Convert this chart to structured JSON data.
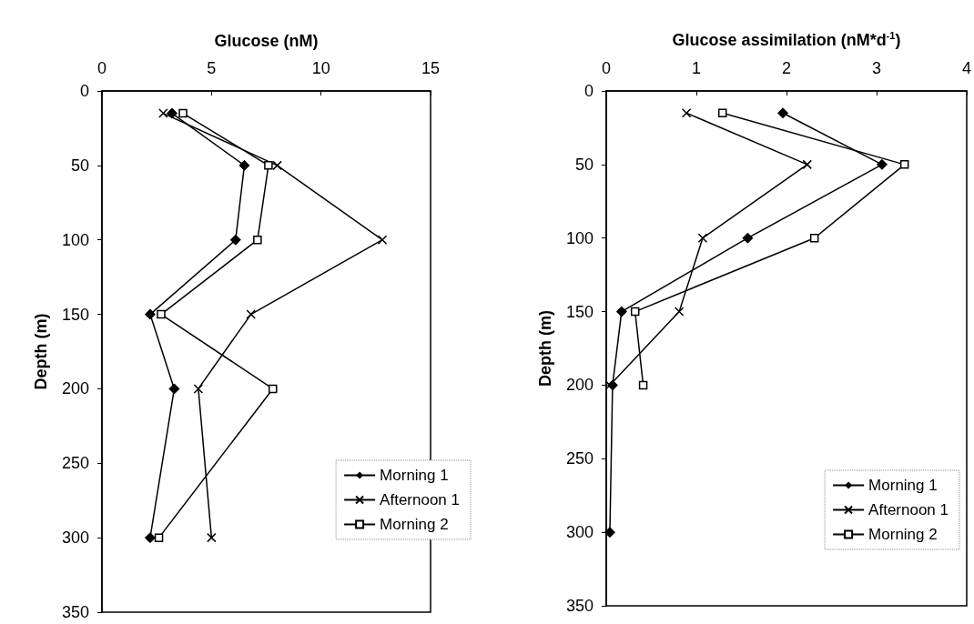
{
  "chart_data": [
    {
      "type": "line",
      "xlabel": "Glucose (nM)",
      "ylabel": "Depth (m)",
      "xlim": [
        0,
        15
      ],
      "xticks": [
        0,
        5,
        10,
        15
      ],
      "ylim": [
        350,
        0
      ],
      "yticks": [
        0,
        50,
        100,
        150,
        200,
        250,
        300,
        350
      ],
      "grid": false,
      "legend": "bottom right",
      "series": [
        {
          "name": "Morning 1",
          "color": "#000000",
          "marker": "diamond",
          "x": [
            3.2,
            6.5,
            6.1,
            2.2,
            3.3,
            2.2
          ],
          "values": [
            15,
            50,
            100,
            150,
            200,
            300
          ]
        },
        {
          "name": "Afternoon 1",
          "color": "#000000",
          "marker": "cross",
          "x": [
            2.8,
            8.0,
            12.8,
            6.8,
            4.4,
            5.0
          ],
          "values": [
            15,
            50,
            100,
            150,
            200,
            300
          ]
        },
        {
          "name": "Morning 2",
          "color": "#000000",
          "marker": "square",
          "x": [
            3.7,
            7.6,
            7.1,
            2.7,
            7.8,
            2.6
          ],
          "values": [
            15,
            50,
            100,
            150,
            200,
            300
          ]
        }
      ]
    },
    {
      "type": "line",
      "xlabel": "Glucose assimilation (nM*d$^{-1}$)",
      "ylabel": "Depth (m)",
      "xlim": [
        0,
        4
      ],
      "xticks": [
        0,
        1,
        2,
        3,
        4
      ],
      "ylim": [
        350,
        0
      ],
      "yticks": [
        0,
        50,
        100,
        150,
        200,
        250,
        300,
        350
      ],
      "grid": false,
      "legend": "bottom right",
      "series": [
        {
          "name": "Morning 1",
          "color": "#000000",
          "marker": "diamond",
          "x": [
            1.96,
            3.06,
            1.57,
            0.17,
            0.07,
            0.04
          ],
          "values": [
            15,
            50,
            100,
            150,
            200,
            300
          ]
        },
        {
          "name": "Afternoon 1",
          "color": "#000000",
          "marker": "cross",
          "x": [
            0.89,
            2.23,
            1.07,
            0.81,
            0.04
          ],
          "values": [
            15,
            50,
            100,
            150,
            200
          ]
        },
        {
          "name": "Morning 2",
          "color": "#000000",
          "marker": "square",
          "x": [
            1.29,
            3.31,
            2.31,
            0.32,
            0.41
          ],
          "values": [
            15,
            50,
            100,
            150,
            200
          ]
        }
      ]
    }
  ]
}
